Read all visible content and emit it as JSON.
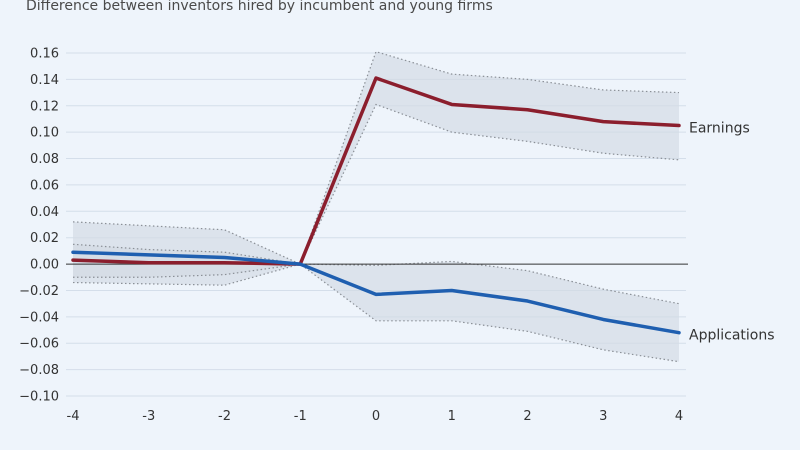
{
  "chart_data": {
    "type": "line",
    "subtitle": "Difference between inventors hired by incumbent and young firms",
    "x": [
      -4,
      -3,
      -2,
      -1,
      0,
      1,
      2,
      3,
      4
    ],
    "xticks": [
      "-4",
      "-3",
      "-2",
      "-1",
      "0",
      "1",
      "2",
      "3",
      "4"
    ],
    "ylim": [
      -0.1,
      0.16
    ],
    "yticks": [
      "0.16",
      "0.14",
      "0.12",
      "0.10",
      "0.08",
      "0.06",
      "0.04",
      "0.02",
      "0.00",
      "−0.02",
      "−0.04",
      "−0.06",
      "−0.08",
      "−0.10"
    ],
    "ytick_values": [
      0.16,
      0.14,
      0.12,
      0.1,
      0.08,
      0.06,
      0.04,
      0.02,
      0.0,
      -0.02,
      -0.04,
      -0.06,
      -0.08,
      -0.1
    ],
    "grid": true,
    "series": [
      {
        "name": "Earnings",
        "color": "#8b1e2d",
        "values": [
          0.003,
          0.001,
          0.001,
          0.0,
          0.141,
          0.121,
          0.117,
          0.108,
          0.105
        ],
        "ci_upper": [
          0.015,
          0.011,
          0.009,
          0.0,
          0.161,
          0.144,
          0.14,
          0.132,
          0.13
        ],
        "ci_lower": [
          -0.01,
          -0.01,
          -0.008,
          0.0,
          0.121,
          0.1,
          0.093,
          0.084,
          0.079
        ]
      },
      {
        "name": "Applications",
        "color": "#1f5fb0",
        "values": [
          0.009,
          0.007,
          0.005,
          0.0,
          -0.023,
          -0.02,
          -0.028,
          -0.042,
          -0.052
        ],
        "ci_upper": [
          0.032,
          0.029,
          0.026,
          0.0,
          -0.001,
          0.002,
          -0.005,
          -0.019,
          -0.03
        ],
        "ci_lower": [
          -0.014,
          -0.015,
          -0.016,
          0.0,
          -0.043,
          -0.043,
          -0.051,
          -0.065,
          -0.074
        ]
      }
    ],
    "band_color": "#d3dae3",
    "zero_line_color": "#333333",
    "grid_color": "#d4deea",
    "axis_text_color": "#333333"
  }
}
